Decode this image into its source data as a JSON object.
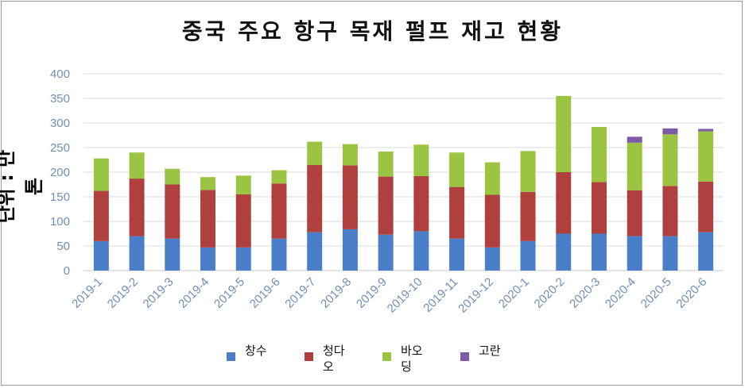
{
  "chart_data": {
    "type": "bar",
    "stacked": true,
    "title": "중국 주요 항구 목재 펄프 재고 현황",
    "ylabel": "단위 : 만톤",
    "xlabel": "",
    "ylim": [
      0,
      400
    ],
    "yticks": [
      0,
      50,
      100,
      150,
      200,
      250,
      300,
      350,
      400
    ],
    "grid": true,
    "legend_position": "bottom",
    "categories": [
      "2019-1",
      "2019-2",
      "2019-3",
      "2019-4",
      "2019-5",
      "2019-6",
      "2019-7",
      "2019-8",
      "2019-9",
      "2019-10",
      "2019-11",
      "2019-12",
      "2020-1",
      "2020-2",
      "2020-3",
      "2020-4",
      "2020-5",
      "2020-6"
    ],
    "series": [
      {
        "name": "창수",
        "color": "#4a7ec8",
        "values": [
          60,
          70,
          65,
          47,
          47,
          65,
          78,
          84,
          73,
          80,
          65,
          47,
          60,
          75,
          75,
          70,
          70,
          78
        ]
      },
      {
        "name": "청다오",
        "color": "#b0403e",
        "values": [
          102,
          117,
          110,
          117,
          108,
          112,
          137,
          130,
          118,
          112,
          105,
          107,
          100,
          125,
          105,
          93,
          102,
          103
        ]
      },
      {
        "name": "바오딩",
        "color": "#9bc442",
        "values": [
          66,
          53,
          32,
          26,
          38,
          27,
          47,
          43,
          51,
          64,
          70,
          66,
          83,
          155,
          112,
          97,
          105,
          102
        ]
      },
      {
        "name": "고란",
        "color": "#7d5aa6",
        "values": [
          0,
          0,
          0,
          0,
          0,
          0,
          0,
          0,
          0,
          0,
          0,
          0,
          0,
          0,
          0,
          12,
          12,
          5
        ]
      }
    ]
  }
}
